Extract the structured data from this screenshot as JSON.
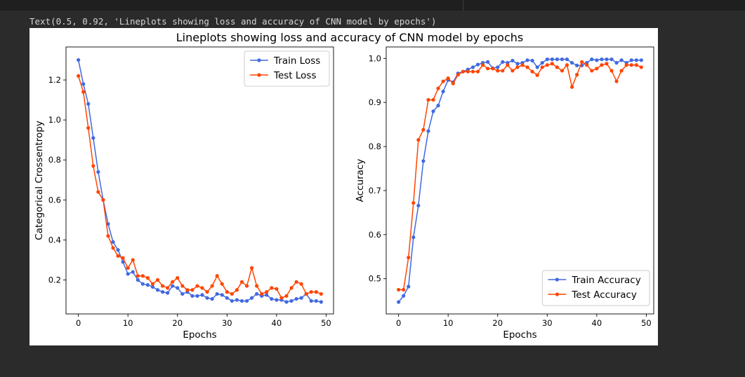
{
  "cell_output": {
    "text": "Text(0.5, 0.92, 'Lineplots showing loss and accuracy of CNN model by epochs')"
  },
  "colors": {
    "train": "#4169e1",
    "test": "#ff4500",
    "background": "#2b2b2b",
    "figure": "#ffffff"
  },
  "chart_data": {
    "suptitle": "Lineplots showing loss and accuracy of CNN model by epochs",
    "charts": [
      {
        "type": "line",
        "xlabel": "Epochs",
        "ylabel": "Categorical Crossentropy",
        "xlim": [
          -2.5,
          51.5
        ],
        "ylim": [
          0.03,
          1.365
        ],
        "xticks": [
          0,
          10,
          20,
          30,
          40,
          50
        ],
        "yticks": [
          0.2,
          0.4,
          0.6,
          0.8,
          1.0,
          1.2
        ],
        "ytick_labels": [
          "0.2",
          "0.4",
          "0.6",
          "0.8",
          "1.0",
          "1.2"
        ],
        "legend_position": "top-right",
        "marker": "circle",
        "grid": false,
        "series": [
          {
            "name": "Train Loss",
            "color": "#4169e1",
            "x": [
              0,
              1,
              2,
              3,
              4,
              5,
              6,
              7,
              8,
              9,
              10,
              11,
              12,
              13,
              14,
              15,
              16,
              17,
              18,
              19,
              20,
              21,
              22,
              23,
              24,
              25,
              26,
              27,
              28,
              29,
              30,
              31,
              32,
              33,
              34,
              35,
              36,
              37,
              38,
              39,
              40,
              41,
              42,
              43,
              44,
              45,
              46,
              47,
              48,
              49
            ],
            "values": [
              1.3,
              1.18,
              1.08,
              0.91,
              0.74,
              0.6,
              0.48,
              0.39,
              0.35,
              0.29,
              0.23,
              0.24,
              0.2,
              0.18,
              0.175,
              0.165,
              0.15,
              0.14,
              0.135,
              0.17,
              0.16,
              0.13,
              0.14,
              0.12,
              0.12,
              0.125,
              0.11,
              0.105,
              0.13,
              0.125,
              0.11,
              0.095,
              0.1,
              0.095,
              0.095,
              0.11,
              0.13,
              0.12,
              0.125,
              0.105,
              0.1,
              0.1,
              0.09,
              0.095,
              0.105,
              0.11,
              0.13,
              0.095,
              0.095,
              0.09
            ]
          },
          {
            "name": "Test Loss",
            "color": "#ff4500",
            "x": [
              0,
              1,
              2,
              3,
              4,
              5,
              6,
              7,
              8,
              9,
              10,
              11,
              12,
              13,
              14,
              15,
              16,
              17,
              18,
              19,
              20,
              21,
              22,
              23,
              24,
              25,
              26,
              27,
              28,
              29,
              30,
              31,
              32,
              33,
              34,
              35,
              36,
              37,
              38,
              39,
              40,
              41,
              42,
              43,
              44,
              45,
              46,
              47,
              48,
              49
            ],
            "values": [
              1.22,
              1.14,
              0.96,
              0.77,
              0.64,
              0.6,
              0.42,
              0.36,
              0.32,
              0.31,
              0.26,
              0.3,
              0.22,
              0.22,
              0.21,
              0.18,
              0.2,
              0.17,
              0.16,
              0.19,
              0.21,
              0.17,
              0.15,
              0.15,
              0.17,
              0.16,
              0.14,
              0.17,
              0.22,
              0.18,
              0.14,
              0.13,
              0.15,
              0.19,
              0.17,
              0.26,
              0.17,
              0.13,
              0.14,
              0.16,
              0.155,
              0.11,
              0.12,
              0.16,
              0.19,
              0.18,
              0.13,
              0.14,
              0.14,
              0.13
            ]
          }
        ]
      },
      {
        "type": "line",
        "xlabel": "Epochs",
        "ylabel": "Accuracy",
        "xlim": [
          -2.5,
          51.5
        ],
        "ylim": [
          0.42,
          1.026
        ],
        "xticks": [
          0,
          10,
          20,
          30,
          40,
          50
        ],
        "yticks": [
          0.5,
          0.6,
          0.7,
          0.8,
          0.9,
          1.0
        ],
        "ytick_labels": [
          "0.5",
          "0.6",
          "0.7",
          "0.8",
          "0.9",
          "1.0"
        ],
        "legend_position": "bottom-right",
        "marker": "circle",
        "grid": false,
        "series": [
          {
            "name": "Train Accuracy",
            "color": "#4169e1",
            "x": [
              0,
              1,
              2,
              3,
              4,
              5,
              6,
              7,
              8,
              9,
              10,
              11,
              12,
              13,
              14,
              15,
              16,
              17,
              18,
              19,
              20,
              21,
              22,
              23,
              24,
              25,
              26,
              27,
              28,
              29,
              30,
              31,
              32,
              33,
              34,
              35,
              36,
              37,
              38,
              39,
              40,
              41,
              42,
              43,
              44,
              45,
              46,
              47,
              48,
              49
            ],
            "values": [
              0.447,
              0.461,
              0.482,
              0.594,
              0.666,
              0.767,
              0.835,
              0.88,
              0.893,
              0.925,
              0.951,
              0.946,
              0.966,
              0.97,
              0.975,
              0.98,
              0.986,
              0.99,
              0.992,
              0.978,
              0.98,
              0.992,
              0.99,
              0.995,
              0.988,
              0.99,
              0.996,
              0.995,
              0.98,
              0.99,
              0.998,
              0.998,
              0.998,
              0.998,
              0.998,
              0.99,
              0.984,
              0.984,
              0.99,
              0.998,
              0.996,
              0.998,
              0.998,
              0.998,
              0.99,
              0.996,
              0.99,
              0.996,
              0.996,
              0.996
            ]
          },
          {
            "name": "Test Accuracy",
            "color": "#ff4500",
            "x": [
              0,
              1,
              2,
              3,
              4,
              5,
              6,
              7,
              8,
              9,
              10,
              11,
              12,
              13,
              14,
              15,
              16,
              17,
              18,
              19,
              20,
              21,
              22,
              23,
              24,
              25,
              26,
              27,
              28,
              29,
              30,
              31,
              32,
              33,
              34,
              35,
              36,
              37,
              38,
              39,
              40,
              41,
              42,
              43,
              44,
              45,
              46,
              47,
              48,
              49
            ],
            "values": [
              0.475,
              0.475,
              0.548,
              0.672,
              0.815,
              0.838,
              0.906,
              0.906,
              0.932,
              0.948,
              0.955,
              0.943,
              0.963,
              0.97,
              0.97,
              0.97,
              0.97,
              0.985,
              0.977,
              0.977,
              0.972,
              0.972,
              0.985,
              0.972,
              0.98,
              0.985,
              0.98,
              0.97,
              0.962,
              0.98,
              0.985,
              0.988,
              0.98,
              0.972,
              0.985,
              0.935,
              0.963,
              0.992,
              0.985,
              0.972,
              0.977,
              0.985,
              0.988,
              0.972,
              0.948,
              0.972,
              0.985,
              0.985,
              0.985,
              0.98
            ]
          }
        ]
      }
    ]
  }
}
